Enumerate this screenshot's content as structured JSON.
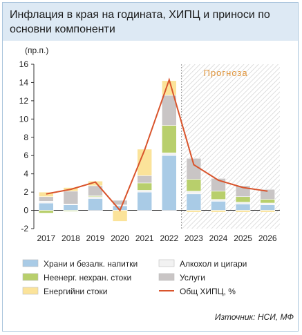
{
  "header": {
    "title": "Инфлация в края на годината, ХИПЦ и приноси по основни компоненти"
  },
  "source": "Източник: НСИ, МФ",
  "colors": {
    "food": "#a9cbe6",
    "alcohol": "#f2f2f2",
    "nonenergy": "#b8cf6c",
    "services": "#c9c5c5",
    "energy": "#fbe39a",
    "hicp": "#d9542c",
    "forecast_label": "#e0953b"
  },
  "chart_data": {
    "type": "bar",
    "stacked": true,
    "categories": [
      "2017",
      "2018",
      "2019",
      "2020",
      "2021",
      "2022",
      "2023",
      "2024",
      "2025",
      "2026"
    ],
    "y_unit_label": "(пр.п.)",
    "ylim": [
      -2,
      16
    ],
    "yticks": [
      -2,
      0,
      2,
      4,
      6,
      8,
      10,
      12,
      14,
      16
    ],
    "forecast_label": "Прогноза",
    "forecast_start_index": 6,
    "series": [
      {
        "name": "Храни и безалк. напитки",
        "key": "food",
        "values": [
          0.8,
          0.6,
          1.3,
          0.5,
          2.0,
          6.0,
          1.8,
          1.0,
          0.7,
          0.6
        ]
      },
      {
        "name": "Алкохол и цигари",
        "key": "alcohol",
        "values": [
          0.2,
          0.1,
          0.2,
          0.1,
          0.2,
          0.3,
          0.3,
          0.2,
          0.2,
          0.2
        ]
      },
      {
        "name": "Неенерг. нехран. стоки",
        "key": "nonenergy",
        "values": [
          -0.3,
          -0.1,
          0.1,
          0.0,
          0.8,
          3.0,
          1.3,
          0.9,
          0.6,
          0.4
        ]
      },
      {
        "name": "Услуги",
        "key": "services",
        "values": [
          0.5,
          1.4,
          1.1,
          0.5,
          0.8,
          3.3,
          2.3,
          1.4,
          1.2,
          1.1
        ]
      },
      {
        "name": "Енергийни стоки",
        "key": "energy",
        "values": [
          0.5,
          0.4,
          0.5,
          -1.2,
          2.9,
          1.6,
          -0.2,
          -0.2,
          -0.2,
          -0.2
        ]
      }
    ],
    "line": {
      "name": "Общ ХИПЦ, %",
      "key": "hicp",
      "values": [
        1.8,
        2.3,
        3.1,
        0.0,
        6.6,
        14.3,
        5.0,
        3.3,
        2.5,
        2.1
      ]
    },
    "legend_placement": "bottom"
  }
}
